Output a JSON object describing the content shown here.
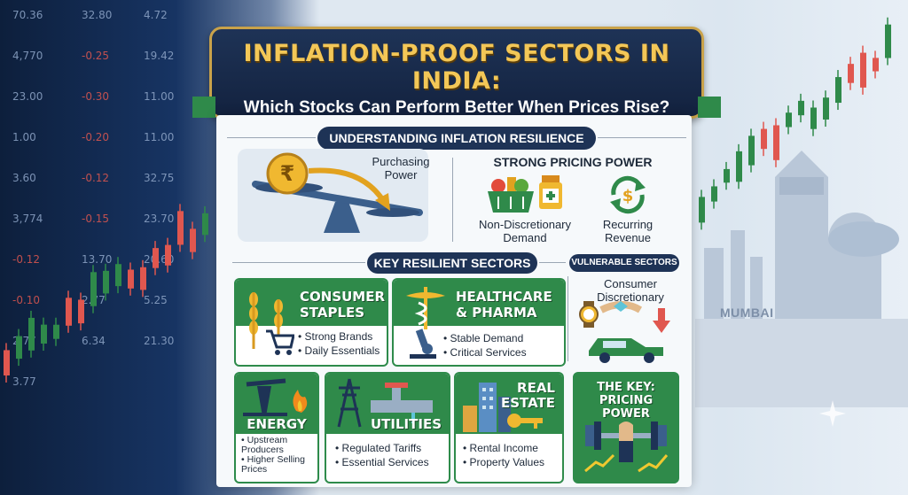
{
  "title": {
    "main": "INFLATION-PROOF SECTORS IN INDIA:",
    "sub": "Which Stocks Can Perform Better When Prices Rise?"
  },
  "background": {
    "tickers": [
      "70.36",
      "32.80",
      "4.72",
      "4,770",
      "-0.25",
      "19.42",
      "23.00",
      "-0.30",
      "11.00",
      "1.00",
      "-0.20",
      "11.00",
      "3.60",
      "-0.12",
      "32.75",
      "3,774",
      "-0.15",
      "23.70",
      "-0.12",
      "13.70",
      "20.60",
      "-0.10",
      "2.77",
      "5.25",
      "2.77",
      "6.34",
      "21.30",
      "3.77"
    ],
    "city_label": "MUMBAI"
  },
  "understanding": {
    "heading": "UNDERSTANDING INFLATION RESILIENCE",
    "purchasing_power": "Purchasing\nPower",
    "pricing_power_heading": "STRONG PRICING POWER",
    "non_discretionary": "Non-Discretionary\nDemand",
    "recurring_revenue": "Recurring\nRevenue"
  },
  "key_sectors_heading": "KEY RESILIENT SECTORS",
  "vulnerable": {
    "heading": "VULNERABLE SECTORS",
    "label": "Consumer\nDiscretionary"
  },
  "cards": {
    "consumer_staples": {
      "title": "CONSUMER\nSTAPLES",
      "bullets": [
        "Strong Brands",
        "Daily Essentials"
      ]
    },
    "healthcare": {
      "title": "HEALTHCARE\n& PHARMA",
      "bullets": [
        "Stable Demand",
        "Critical Services"
      ]
    },
    "energy": {
      "title": "ENERGY",
      "bullets": [
        "Upstream\nProducers",
        "Higher Selling\nPrices"
      ]
    },
    "utilities": {
      "title": "UTILITIES",
      "bullets": [
        "Regulated Tariffs",
        "Essential Services"
      ]
    },
    "real_estate": {
      "title": "REAL\nESTATE",
      "bullets": [
        "Rental Income",
        "Property Values"
      ]
    },
    "key": {
      "title": "THE KEY:\nPRICING POWER"
    }
  },
  "colors": {
    "navy": "#1e3356",
    "gold": "#f3c757",
    "green": "#2f8a4a",
    "red": "#e0574f"
  },
  "icons": [
    "rupee-coin-icon",
    "balance-scale-icon",
    "grocery-basket-icon",
    "medicine-bottle-icon",
    "recurring-arrows-icon",
    "wheat-icon",
    "shopping-cart-icon",
    "caduceus-icon",
    "microscope-icon",
    "oil-pump-icon",
    "flame-icon",
    "power-tower-icon",
    "water-pipe-icon",
    "buildings-icon",
    "key-icon",
    "dumbbell-icon",
    "watch-icon",
    "car-icon",
    "down-arrow-icon"
  ]
}
